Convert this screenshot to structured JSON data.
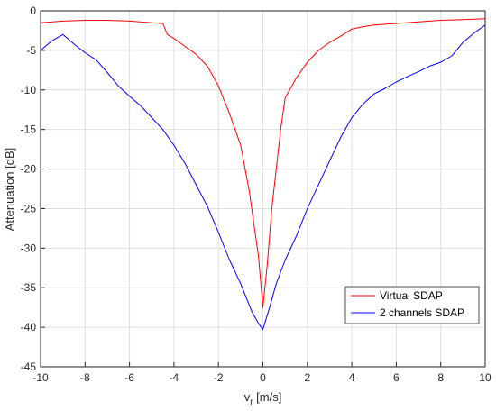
{
  "chart_data": {
    "type": "line",
    "title": "",
    "xlabel": "v",
    "xlabel_sub": "r",
    "xlabel_unit": " [m/s]",
    "ylabel": "Attenuation [dB]",
    "xlim": [
      -10,
      10
    ],
    "ylim": [
      -45,
      0
    ],
    "xticks": [
      -10,
      -8,
      -6,
      -4,
      -2,
      0,
      2,
      4,
      6,
      8,
      10
    ],
    "yticks": [
      0,
      -5,
      -10,
      -15,
      -20,
      -25,
      -30,
      -35,
      -40,
      -45
    ],
    "grid": true,
    "legend_position": "bottom-right",
    "series": [
      {
        "name": "Virtual SDAP",
        "color": "#ff0000",
        "x": [
          -10,
          -9,
          -8,
          -7,
          -6,
          -5,
          -4.5,
          -4.3,
          -4,
          -3.5,
          -3,
          -2.5,
          -2,
          -1.5,
          -1,
          -0.8,
          -0.6,
          -0.4,
          -0.2,
          0,
          0.2,
          0.4,
          0.6,
          0.8,
          1,
          1.5,
          2,
          2.5,
          3,
          3.5,
          4,
          4.5,
          5,
          6,
          7,
          8,
          9,
          10
        ],
        "y": [
          -1.5,
          -1.3,
          -1.2,
          -1.2,
          -1.3,
          -1.5,
          -1.6,
          -3,
          -3.5,
          -4.5,
          -5.5,
          -7,
          -9.5,
          -13,
          -17,
          -20,
          -23,
          -27,
          -31,
          -37.5,
          -32,
          -25,
          -20,
          -15,
          -11,
          -8.5,
          -6.5,
          -5,
          -4,
          -3.2,
          -2.3,
          -2,
          -1.8,
          -1.6,
          -1.4,
          -1.2,
          -1.1,
          -1
        ]
      },
      {
        "name": "2 channels SDAP",
        "color": "#0000ff",
        "x": [
          -10,
          -9.5,
          -9,
          -8.5,
          -8,
          -7.5,
          -7,
          -6.5,
          -6,
          -5.5,
          -5,
          -4.5,
          -4,
          -3.5,
          -3,
          -2.5,
          -2,
          -1.5,
          -1,
          -0.5,
          -0.2,
          0,
          0.3,
          0.6,
          1,
          1.5,
          2,
          2.5,
          3,
          3.5,
          4,
          4.5,
          5,
          5.5,
          6,
          6.5,
          7,
          7.5,
          8,
          8.5,
          9,
          9.5,
          10
        ],
        "y": [
          -5,
          -3.8,
          -3,
          -4.2,
          -5.3,
          -6.2,
          -7.8,
          -9.5,
          -10.8,
          -12,
          -13.5,
          -15,
          -17,
          -19.3,
          -22,
          -24.7,
          -28,
          -31.5,
          -34.5,
          -38,
          -39.5,
          -40.3,
          -37.5,
          -34.5,
          -31.5,
          -28.5,
          -25,
          -22,
          -19,
          -16,
          -13.5,
          -11.8,
          -10.5,
          -9.8,
          -9,
          -8.3,
          -7.7,
          -7,
          -6.5,
          -5.7,
          -4,
          -2.8,
          -1.8
        ]
      }
    ]
  }
}
